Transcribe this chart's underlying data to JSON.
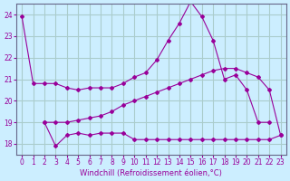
{
  "bg_color": "#cceeff",
  "line_color": "#990099",
  "grid_color": "#aacccc",
  "xlabel": "Windchill (Refroidissement éolien,°C)",
  "xlim": [
    -0.5,
    23.5
  ],
  "ylim": [
    17.5,
    24.5
  ],
  "yticks": [
    18,
    19,
    20,
    21,
    22,
    23,
    24
  ],
  "xticks": [
    0,
    1,
    2,
    3,
    4,
    5,
    6,
    7,
    8,
    9,
    10,
    11,
    12,
    13,
    14,
    15,
    16,
    17,
    18,
    19,
    20,
    21,
    22,
    23
  ],
  "series": [
    {
      "x": [
        0,
        1,
        2,
        3,
        4,
        5,
        6,
        7,
        8,
        9,
        10,
        11,
        12,
        13,
        14,
        15,
        16,
        17,
        18,
        19,
        20,
        21,
        22
      ],
      "y": [
        23.9,
        20.8,
        20.8,
        20.8,
        20.6,
        20.5,
        20.6,
        20.6,
        20.6,
        20.8,
        21.1,
        21.3,
        21.9,
        22.8,
        23.6,
        24.6,
        23.9,
        22.8,
        21.0,
        21.2,
        20.5,
        19.0,
        19.0
      ]
    },
    {
      "x": [
        2,
        3,
        4,
        5,
        6,
        7,
        8,
        9,
        10,
        11,
        12,
        13,
        14,
        15,
        16,
        17,
        18,
        19,
        20,
        21,
        22,
        23
      ],
      "y": [
        19.0,
        19.0,
        19.0,
        19.1,
        19.2,
        19.3,
        19.5,
        19.8,
        20.0,
        20.2,
        20.4,
        20.6,
        20.8,
        21.0,
        21.2,
        21.4,
        21.5,
        21.5,
        21.3,
        21.1,
        20.5,
        18.4
      ]
    },
    {
      "x": [
        2,
        3,
        4,
        5,
        6,
        7,
        8,
        9,
        10,
        11,
        12,
        13,
        14,
        15,
        16,
        17,
        18,
        19,
        20,
        21,
        22,
        23
      ],
      "y": [
        19.0,
        17.9,
        18.4,
        18.5,
        18.4,
        18.5,
        18.5,
        18.5,
        18.2,
        18.2,
        18.2,
        18.2,
        18.2,
        18.2,
        18.2,
        18.2,
        18.2,
        18.2,
        18.2,
        18.2,
        18.2,
        18.4
      ]
    }
  ]
}
